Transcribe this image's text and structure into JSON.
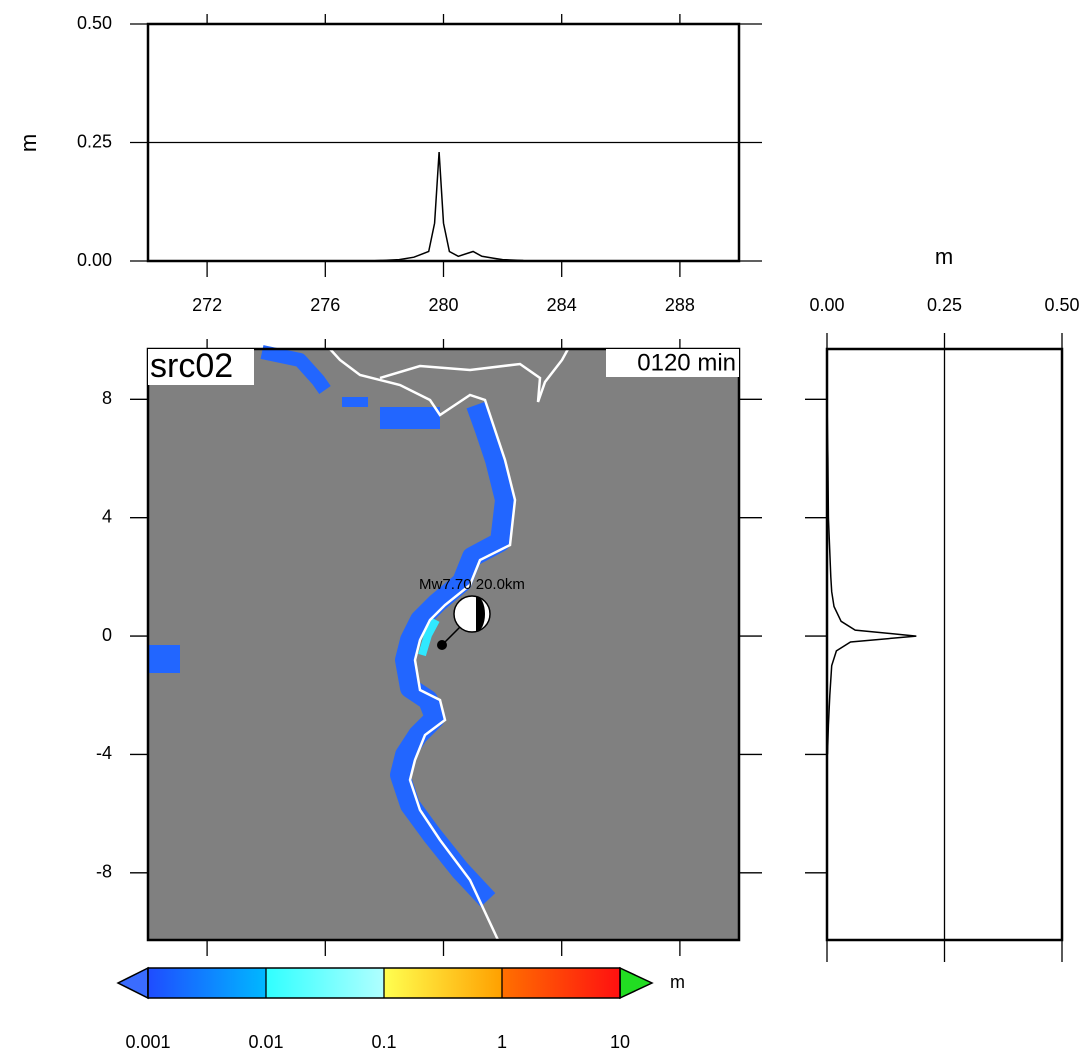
{
  "chart_data": [
    {
      "type": "line",
      "ylabel": "m",
      "x": [
        270,
        277.5,
        278.5,
        279,
        279.5,
        279.7,
        279.85,
        280,
        280.2,
        280.5,
        281,
        281.3,
        281.7,
        282,
        282.7
      ],
      "values": [
        0,
        0,
        0.003,
        0.008,
        0.02,
        0.08,
        0.23,
        0.08,
        0.02,
        0.01,
        0.02,
        0.01,
        0.006,
        0.003,
        0.001
      ],
      "color": "#000000",
      "xlim": [
        270,
        290
      ],
      "xticks": [
        272,
        276,
        280,
        284,
        288
      ],
      "ylim": [
        0,
        0.5
      ],
      "yticks": [
        {
          "value": 0,
          "label": "0.00"
        },
        {
          "value": 0.25,
          "label": "0.25"
        },
        {
          "value": 0.5,
          "label": "0.50"
        }
      ],
      "grid": true
    },
    {
      "type": "map",
      "title": "src02",
      "time_label": "0120 min",
      "annotation": "Mw7.70  20.0km",
      "xlim": [
        270,
        290
      ],
      "xticks": [
        272,
        276,
        280,
        284,
        288
      ],
      "ylim": [
        -10.27,
        9.7
      ],
      "yticks": [
        8,
        4,
        0,
        -4,
        -8
      ]
    },
    {
      "type": "hline",
      "xlabel": "m",
      "y": [
        8,
        6,
        4,
        2,
        1.5,
        1,
        0.5,
        0.2,
        0,
        -0.2,
        -0.5,
        -1,
        -2,
        -3,
        -4
      ],
      "values": [
        0,
        0.002,
        0.003,
        0.008,
        0.01,
        0.015,
        0.03,
        0.06,
        0.19,
        0.05,
        0.02,
        0.01,
        0.006,
        0.003,
        0.001
      ],
      "color": "#000000",
      "xlim": [
        0,
        0.5
      ],
      "xticks": [
        {
          "value": 0,
          "label": "0.00"
        },
        {
          "value": 0.25,
          "label": "0.25"
        },
        {
          "value": 0.5,
          "label": "0.50"
        }
      ],
      "ylim": [
        -10.27,
        9.7
      ],
      "yticks": [
        8,
        4,
        0,
        -4,
        -8
      ],
      "grid": true
    },
    {
      "type": "colorbar",
      "unit": "m",
      "log": true,
      "clim": [
        0.001,
        10
      ],
      "ticks": [
        0.001,
        0.01,
        0.1,
        1,
        10
      ],
      "colors": [
        [
          "#1f4cff",
          "#00b8ff"
        ],
        [
          "#30ffff",
          "#b0ffff"
        ],
        [
          "#ffff50",
          "#ffa000"
        ],
        [
          "#ff7000",
          "#ff1010"
        ]
      ],
      "under_color": "#3a6cff",
      "over_color": "#22dd22"
    }
  ]
}
